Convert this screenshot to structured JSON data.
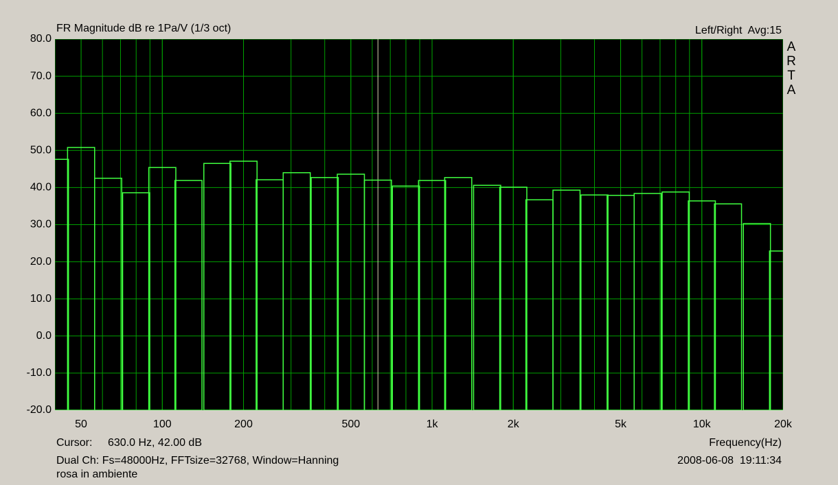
{
  "chart_data": {
    "type": "bar",
    "title": "FR Magnitude dB re 1Pa/V (1/3 oct)",
    "info": "Left/Right  Avg:15",
    "brand": "ARTA",
    "xlabel": "Frequency(Hz)",
    "cursor": {
      "label": "Cursor:",
      "text": "630.0 Hz, 42.00 dB",
      "x": 630
    },
    "footer": [
      "Dual Ch: Fs=48000Hz, FFTsize=32768, Window=Hanning",
      "rosa in ambiente"
    ],
    "timestamp": "2008-06-08  19:11:34",
    "xscale": "log",
    "grid": true,
    "color": "#40ff40",
    "grid_color": "#00a000",
    "cursor_color": "#d8d8b0",
    "x": [
      40,
      50,
      63,
      80,
      100,
      125,
      160,
      200,
      250,
      315,
      400,
      500,
      630,
      800,
      1000,
      1250,
      1600,
      2000,
      2500,
      3150,
      4000,
      5000,
      6300,
      8000,
      10000,
      12500,
      16000,
      20000
    ],
    "values": [
      47.6,
      50.8,
      42.5,
      38.6,
      45.4,
      41.9,
      46.5,
      47.1,
      42.1,
      44.0,
      42.7,
      43.6,
      42.0,
      40.4,
      41.9,
      42.7,
      40.6,
      40.1,
      36.7,
      39.3,
      38.0,
      37.9,
      38.4,
      38.8,
      36.4,
      35.6,
      30.3,
      22.9
    ],
    "xlim": [
      40,
      20000
    ],
    "ylim": [
      -20,
      80
    ],
    "xticks": [
      50,
      100,
      200,
      500,
      {
        "value": 1000,
        "label": "1k"
      },
      {
        "value": 2000,
        "label": "2k"
      },
      {
        "value": 5000,
        "label": "5k"
      },
      {
        "value": 10000,
        "label": "10k"
      },
      {
        "value": 20000,
        "label": "20k"
      }
    ],
    "yticks": [
      {
        "value": -20,
        "label": "-20.0"
      },
      {
        "value": -10,
        "label": "-10.0"
      },
      {
        "value": 0,
        "label": "0.0"
      },
      {
        "value": 10,
        "label": "10.0"
      },
      {
        "value": 20,
        "label": "20.0"
      },
      {
        "value": 30,
        "label": "30.0"
      },
      {
        "value": 40,
        "label": "40.0"
      },
      {
        "value": 50,
        "label": "50.0"
      },
      {
        "value": 60,
        "label": "60.0"
      },
      {
        "value": 70,
        "label": "70.0"
      },
      {
        "value": 80,
        "label": "80.0"
      }
    ]
  }
}
